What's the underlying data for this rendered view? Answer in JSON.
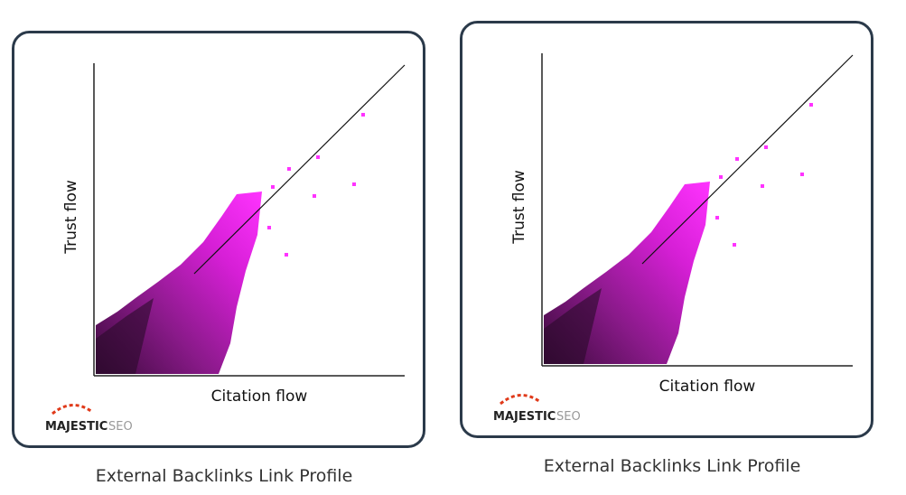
{
  "panels": [
    {
      "y_label": "Trust flow",
      "x_label": "Citation flow",
      "logo_brand": "MAJESTIC",
      "logo_suffix": "SEO",
      "caption": "External Backlinks Link Profile"
    },
    {
      "y_label": "Trust flow",
      "x_label": "Citation flow",
      "logo_brand": "MAJESTIC",
      "logo_suffix": "SEO",
      "caption": "External Backlinks Link Profile"
    }
  ]
}
